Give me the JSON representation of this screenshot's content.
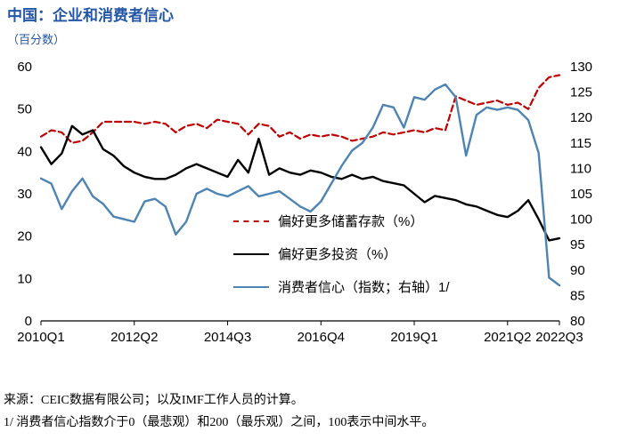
{
  "header": {
    "title": "中国：企业和消费者信心",
    "subtitle": "（百分数）",
    "title_color": "#2356A7"
  },
  "footer": {
    "source": "来源：CEIC数据有限公司；以及IMF工作人员的计算。",
    "footnote": "1/ 消费者信心指数介于0（最悲观）和200（最乐观）之间，100表示中间水平。"
  },
  "chart_data": {
    "type": "line",
    "title": "中国：企业和消费者信心",
    "subtitle": "（百分数）",
    "grid": false,
    "legend_position": "inside-lower-center",
    "x_axis": {
      "ticks": [
        {
          "label": "2010Q1",
          "index": 0
        },
        {
          "label": "2012Q2",
          "index": 9
        },
        {
          "label": "2014Q3",
          "index": 18
        },
        {
          "label": "2016Q4",
          "index": 27
        },
        {
          "label": "2019Q1",
          "index": 36
        },
        {
          "label": "2021Q2",
          "index": 45
        },
        {
          "label": "2022Q3",
          "index": 50
        }
      ]
    },
    "left_axis": {
      "range": [
        0,
        60
      ],
      "ticks": [
        0,
        10,
        20,
        30,
        40,
        50,
        60
      ]
    },
    "right_axis": {
      "range": [
        80,
        130
      ],
      "ticks": [
        80,
        85,
        90,
        95,
        100,
        105,
        110,
        115,
        120,
        125,
        130
      ]
    },
    "x_categories": [
      "2010Q1",
      "2010Q2",
      "2010Q3",
      "2010Q4",
      "2011Q1",
      "2011Q2",
      "2011Q3",
      "2011Q4",
      "2012Q1",
      "2012Q2",
      "2012Q3",
      "2012Q4",
      "2013Q1",
      "2013Q2",
      "2013Q3",
      "2013Q4",
      "2014Q1",
      "2014Q2",
      "2014Q3",
      "2014Q4",
      "2015Q1",
      "2015Q2",
      "2015Q3",
      "2015Q4",
      "2016Q1",
      "2016Q2",
      "2016Q3",
      "2016Q4",
      "2017Q1",
      "2017Q2",
      "2017Q3",
      "2017Q4",
      "2018Q1",
      "2018Q2",
      "2018Q3",
      "2018Q4",
      "2019Q1",
      "2019Q2",
      "2019Q3",
      "2019Q4",
      "2020Q1",
      "2020Q2",
      "2020Q3",
      "2020Q4",
      "2021Q1",
      "2021Q2",
      "2021Q3",
      "2021Q4",
      "2022Q1",
      "2022Q2",
      "2022Q3"
    ],
    "series": [
      {
        "name": "偏好更多储蓄存款（%）",
        "axis": "left",
        "color": "#C00000",
        "style": "dashed",
        "width": 2.2,
        "values": [
          43.5,
          45,
          44.5,
          42,
          42.5,
          44.5,
          47,
          47,
          47,
          47,
          46.5,
          47,
          46.5,
          44.5,
          46,
          46.5,
          45.5,
          47.5,
          47,
          46.5,
          44,
          46.5,
          46,
          43.5,
          44.5,
          43,
          44,
          43.5,
          44,
          43.5,
          42.5,
          43,
          43.5,
          44.5,
          44,
          44.5,
          45,
          44.5,
          45.5,
          45,
          53,
          52,
          51,
          51.5,
          52,
          51,
          51.5,
          50,
          55,
          57.5,
          58
        ]
      },
      {
        "name": "偏好更多投资（%）",
        "axis": "left",
        "color": "#000000",
        "style": "solid",
        "width": 2.4,
        "values": [
          41,
          37,
          39.5,
          46,
          44,
          45,
          40.5,
          39,
          36.5,
          35,
          34,
          33.5,
          33.5,
          34.5,
          36,
          37,
          36,
          35,
          34,
          38,
          35,
          43,
          34.5,
          36,
          35,
          34.5,
          35.5,
          35,
          34,
          33.5,
          34.5,
          33.5,
          34,
          33,
          32.5,
          32,
          30,
          28,
          29.5,
          29,
          28.5,
          27.5,
          27,
          26,
          25,
          24.5,
          26,
          28.5,
          24,
          19,
          19.5
        ]
      },
      {
        "name": "消费者信心（指数；右轴）1/",
        "axis": "right",
        "color": "#4E84B4",
        "style": "solid",
        "width": 2.4,
        "values": [
          108,
          107,
          102,
          105.5,
          108,
          104.5,
          103,
          100.5,
          100,
          99.5,
          103.5,
          104,
          102.5,
          97,
          99.5,
          105,
          106,
          105,
          104.5,
          105.5,
          106.5,
          104.5,
          105,
          105.5,
          104,
          102.5,
          101.5,
          103.5,
          107,
          110.5,
          113.5,
          115,
          118,
          122.5,
          122,
          118,
          124,
          123.5,
          125.5,
          126.5,
          124,
          112.5,
          120.5,
          122,
          121.5,
          122,
          121.5,
          119.5,
          113,
          88.5,
          87
        ]
      }
    ]
  }
}
